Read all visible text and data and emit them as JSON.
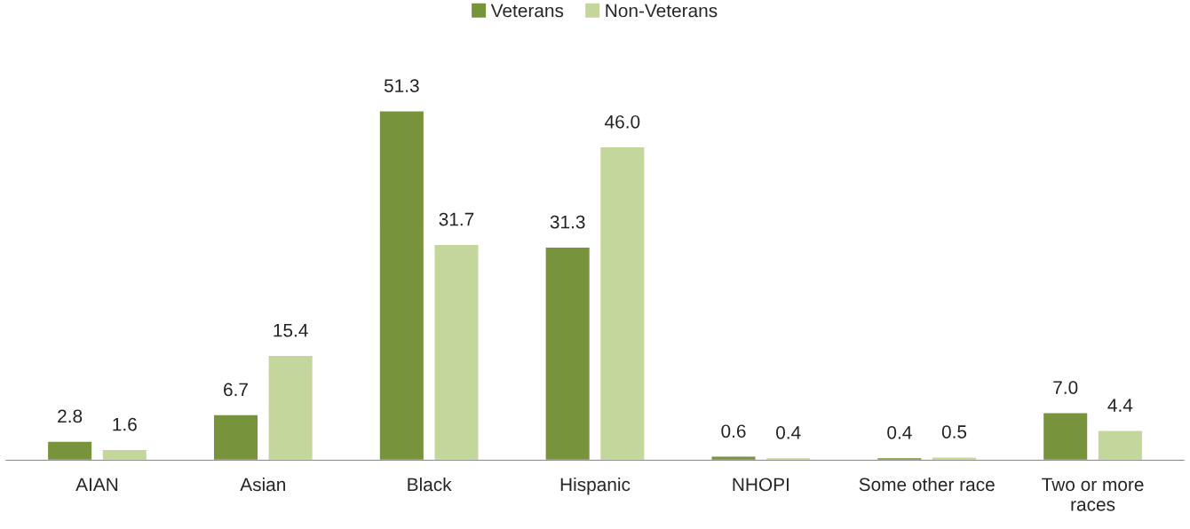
{
  "chart_data": {
    "type": "bar",
    "categories": [
      "AIAN",
      "Asian",
      "Black",
      "Hispanic",
      "NHOPI",
      "Some other race",
      "Two or more races"
    ],
    "series": [
      {
        "name": "Veterans",
        "color": "#77933c",
        "values": [
          2.8,
          6.7,
          51.3,
          31.3,
          0.6,
          0.4,
          7.0
        ],
        "value_labels": [
          "2.8",
          "6.7",
          "51.3",
          "31.3",
          "0.6",
          "0.4",
          "7.0"
        ]
      },
      {
        "name": "Non-Veterans",
        "color": "#c3d69b",
        "values": [
          1.6,
          15.4,
          31.7,
          46.0,
          0.4,
          0.5,
          4.4
        ],
        "value_labels": [
          "1.6",
          "15.4",
          "31.7",
          "46.0",
          "0.4",
          "0.5",
          "4.4"
        ]
      }
    ],
    "legend": "top",
    "grid": false
  }
}
